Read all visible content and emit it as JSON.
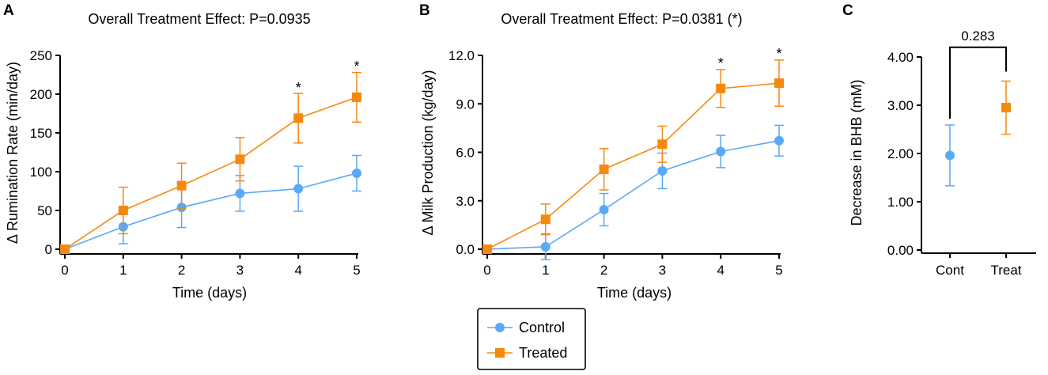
{
  "colors": {
    "control": "#5AA9F5",
    "treated": "#F5890F",
    "axis": "#000000"
  },
  "legend": {
    "control_label": "Control",
    "treated_label": "Treated"
  },
  "chart_data": [
    {
      "panel": "A",
      "type": "line",
      "title": "Overall Treatment Effect: P=0.0935",
      "xlabel": "Time (days)",
      "ylabel": "Δ Rumination Rate (min/day)",
      "x": [
        0,
        1,
        2,
        3,
        4,
        5
      ],
      "xlim": [
        0,
        5
      ],
      "ylim": [
        0,
        250
      ],
      "yticks": [
        0,
        50,
        100,
        150,
        200,
        250
      ],
      "ytick_labels": [
        "0",
        "50",
        "100",
        "150",
        "200",
        "250"
      ],
      "xtick_labels": [
        "0",
        "1",
        "2",
        "3",
        "4",
        "5"
      ],
      "series": [
        {
          "name": "Control",
          "marker": "circle",
          "values": [
            0,
            29,
            54,
            72,
            78,
            98
          ],
          "err": [
            0,
            22,
            26,
            23,
            29,
            23
          ]
        },
        {
          "name": "Treated",
          "marker": "square",
          "values": [
            0,
            50,
            82,
            116,
            169,
            196
          ],
          "err": [
            0,
            30,
            29,
            28,
            32,
            32
          ]
        }
      ],
      "significance": [
        {
          "x": 4,
          "y": 210,
          "text": "*"
        },
        {
          "x": 5,
          "y": 238,
          "text": "*"
        }
      ]
    },
    {
      "panel": "B",
      "type": "line",
      "title": "Overall Treatment Effect: P=0.0381 (*)",
      "xlabel": "Time (days)",
      "ylabel": "Δ Milk Production (kg/day)",
      "x": [
        0,
        1,
        2,
        3,
        4,
        5
      ],
      "xlim": [
        0,
        5
      ],
      "ylim": [
        0,
        12
      ],
      "yticks": [
        0,
        3,
        6,
        9,
        12
      ],
      "ytick_labels": [
        "0.0",
        "3.0",
        "6.0",
        "9.0",
        "12.0"
      ],
      "xtick_labels": [
        "0",
        "1",
        "2",
        "3",
        "4",
        "5"
      ],
      "series": [
        {
          "name": "Control",
          "marker": "circle",
          "values": [
            0,
            0.15,
            2.45,
            4.85,
            6.05,
            6.72
          ],
          "err": [
            0,
            0.8,
            1.0,
            1.1,
            1.0,
            0.95
          ]
        },
        {
          "name": "Treated",
          "marker": "square",
          "values": [
            0,
            1.85,
            4.95,
            6.5,
            9.95,
            10.28
          ],
          "err": [
            0,
            0.95,
            1.28,
            1.12,
            1.17,
            1.43
          ]
        }
      ],
      "significance": [
        {
          "x": 4,
          "y": 11.6,
          "text": "*"
        },
        {
          "x": 5,
          "y": 12.2,
          "text": "*"
        }
      ]
    },
    {
      "panel": "C",
      "type": "scatter",
      "ylabel": "Decrease in BHB (mM)",
      "categories": [
        "Cont",
        "Treat"
      ],
      "ylim": [
        0,
        4
      ],
      "yticks": [
        0,
        1,
        2,
        3,
        4
      ],
      "ytick_labels": [
        "0.00",
        "1.00",
        "2.00",
        "3.00",
        "4.00"
      ],
      "series": [
        {
          "name": "Control",
          "marker": "circle",
          "category": "Cont",
          "value": 1.96,
          "err": 0.63
        },
        {
          "name": "Treated",
          "marker": "square",
          "category": "Treat",
          "value": 2.95,
          "err": 0.55
        }
      ],
      "comparison": {
        "label": "0.283",
        "y": 4.2
      }
    }
  ]
}
